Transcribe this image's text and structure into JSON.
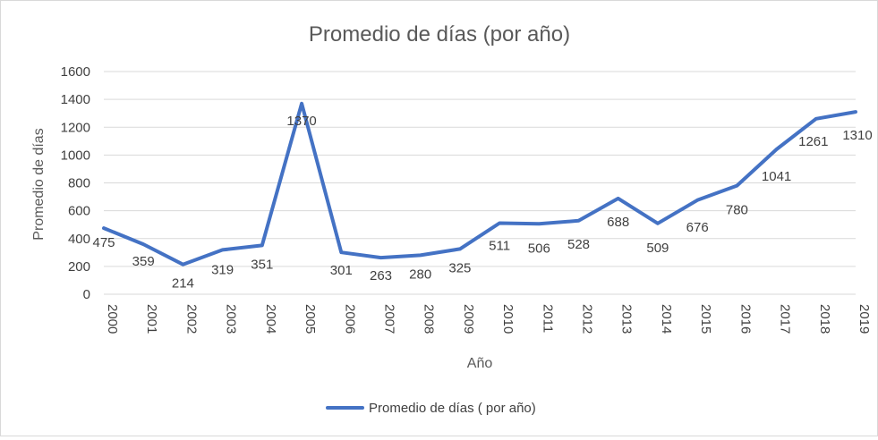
{
  "chart_data": {
    "type": "line",
    "title": "Promedio de días (por año)",
    "xlabel": "Año",
    "ylabel": "Promedio de días",
    "categories": [
      "2000",
      "2001",
      "2002",
      "2003",
      "2004",
      "2005",
      "2006",
      "2007",
      "2008",
      "2009",
      "2010",
      "2011",
      "2012",
      "2013",
      "2014",
      "2015",
      "2016",
      "2017",
      "2018",
      "2019"
    ],
    "series": [
      {
        "name": "Promedio de días ( por año)",
        "color": "#4472c4",
        "values": [
          475,
          359,
          214,
          319,
          351,
          1370,
          301,
          263,
          280,
          325,
          511,
          506,
          528,
          688,
          509,
          676,
          780,
          1041,
          1261,
          1310
        ]
      }
    ],
    "ylim": [
      0,
      1600
    ],
    "yticks": [
      0,
      200,
      400,
      600,
      800,
      1000,
      1200,
      1400,
      1600
    ],
    "grid": true,
    "legend_position": "bottom",
    "data_labels": true
  }
}
